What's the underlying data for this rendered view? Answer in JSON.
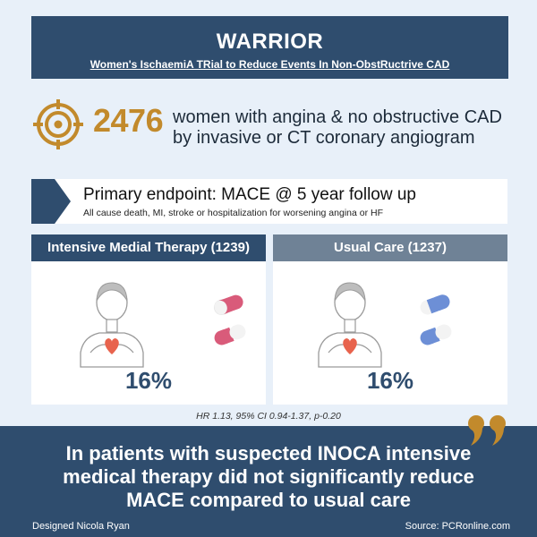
{
  "banner": {
    "title": "WARRIOR",
    "subtitle": "Women's IschaemiA TRial to Reduce Events In Non-ObstRuctrive CAD"
  },
  "population": {
    "count": "2476",
    "line1": "women with angina & no obstructive CAD",
    "line2": "by invasive or CT coronary angiogram"
  },
  "endpoint": {
    "title": "Primary endpoint: MACE @ 5 year follow up",
    "subtitle": "All cause death, MI, stroke or hospitalization for worsening angina or HF"
  },
  "arms": [
    {
      "label": "Intensive Medial Therapy (1239)",
      "percent": "16%",
      "pill_color": "#d95b7a"
    },
    {
      "label": "Usual Care (1237)",
      "percent": "16%",
      "pill_color": "#6d8fd6"
    }
  ],
  "stats": "HR 1.13, 95% CI 0.94-1.37, p-0.20",
  "conclusion": {
    "line1": "In patients with suspected INOCA intensive",
    "line2": "medical therapy did not significantly reduce",
    "line3": "MACE compared to usual care"
  },
  "footer": {
    "credit": "Designed Nicola Ryan",
    "source": "Source: PCRonline.com"
  },
  "colors": {
    "navy": "#2f4d6e",
    "gold": "#c28a2c",
    "slate": "#6f8296",
    "background": "#e8f0f9"
  }
}
